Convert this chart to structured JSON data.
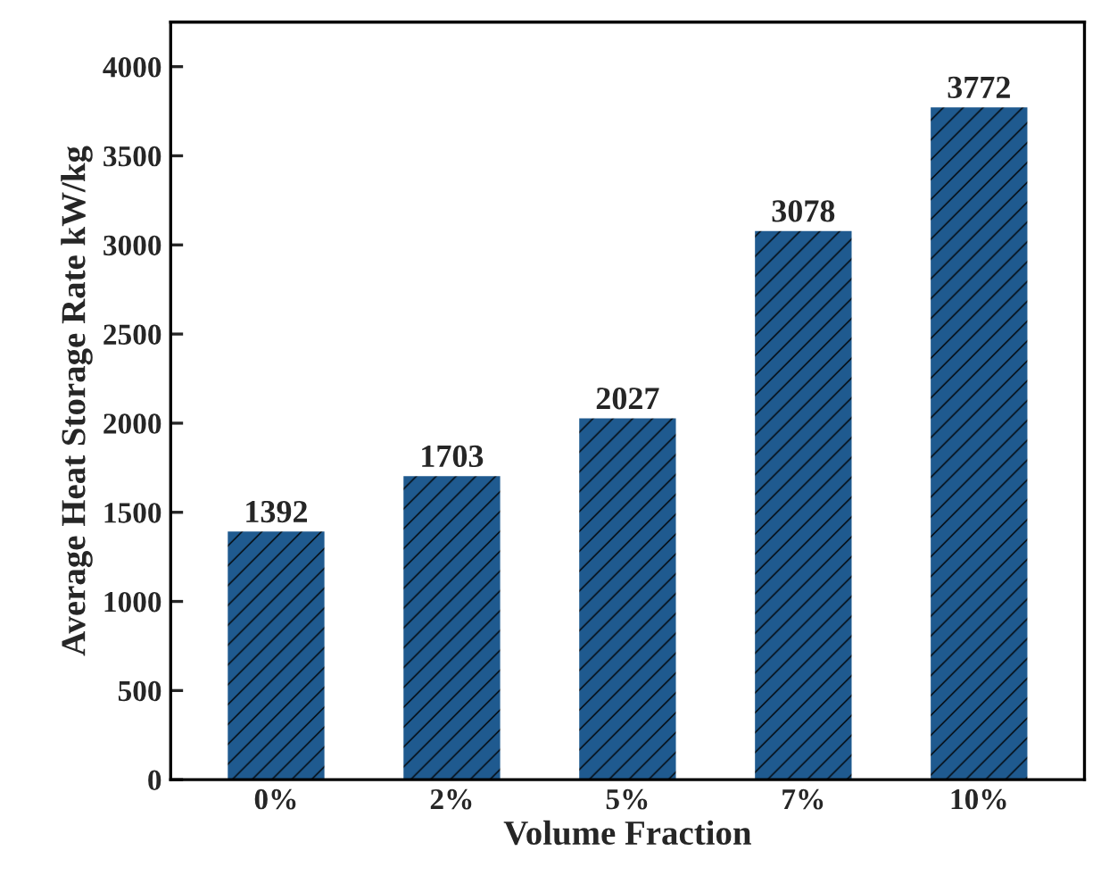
{
  "chart_data": {
    "type": "bar",
    "xlabel": "Volume Fraction",
    "ylabel": "Average Heat Storage Rate kW/kg",
    "categories": [
      "0%",
      "2%",
      "5%",
      "7%",
      "10%"
    ],
    "values": [
      1392,
      1703,
      2027,
      3078,
      3772
    ],
    "color": "#1f5a8f",
    "ylim": [
      0,
      4250
    ],
    "yticks": [
      0,
      500,
      1000,
      1500,
      2000,
      2500,
      3000,
      3500,
      4000
    ],
    "data_labels": true,
    "grid": false,
    "legend": false
  }
}
